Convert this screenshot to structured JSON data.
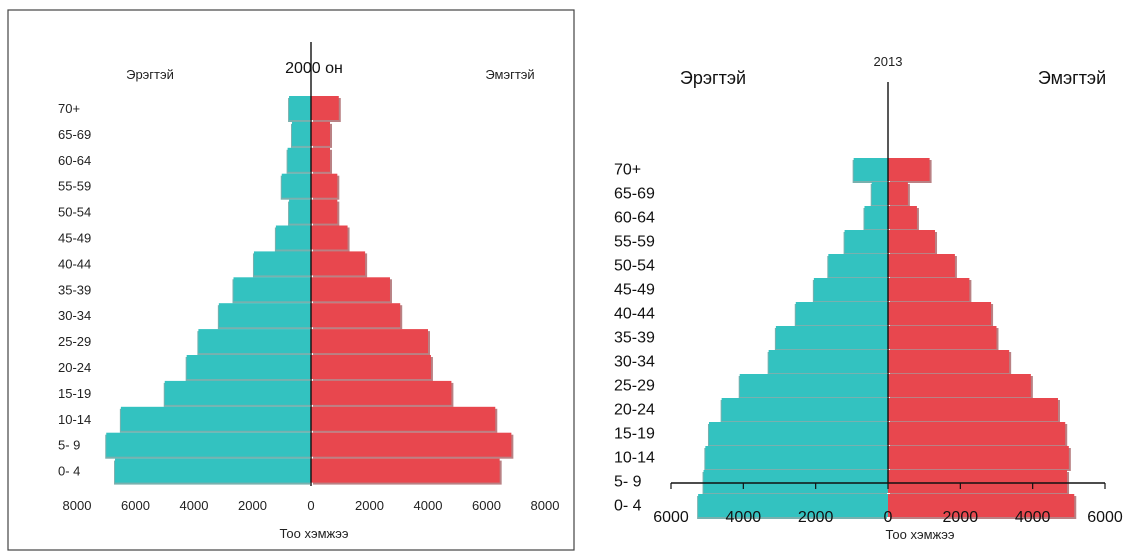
{
  "colors": {
    "male": "#33c2c0",
    "male_shadow": "#0b6f6c",
    "female": "#e8474e",
    "female_shadow": "#7f1a1f",
    "frame": "#444444"
  },
  "chart_data": [
    {
      "type": "bar",
      "title": "2000 он",
      "left_label": "Эрэгтэй",
      "right_label": "Эмэгтэй",
      "xlabel": "Тоо хэмжээ",
      "xlim": [
        -8000,
        8000
      ],
      "xticks": [
        "8000",
        "6000",
        "4000",
        "2000",
        "0",
        "2000",
        "4000",
        "6000",
        "8000"
      ],
      "categories": [
        "70+",
        "65-69",
        "60-64",
        "55-59",
        "50-54",
        "45-49",
        "40-44",
        "35-39",
        "30-34",
        "25-29",
        "20-24",
        "15-19",
        "10-14",
        "5- 9",
        "0- 4"
      ],
      "series": [
        {
          "name": "Эрэгтэй",
          "values": [
            750,
            650,
            800,
            1000,
            750,
            1200,
            1950,
            2650,
            3150,
            3850,
            4250,
            5000,
            6500,
            7000,
            6700
          ]
        },
        {
          "name": "Эмэгтэй",
          "values": [
            950,
            650,
            650,
            900,
            900,
            1250,
            1850,
            2700,
            3050,
            4000,
            4100,
            4800,
            6300,
            6850,
            6450
          ]
        }
      ],
      "grid": false
    },
    {
      "type": "bar",
      "title": "2013",
      "left_label": "Эрэгтэй",
      "right_label": "Эмэгтэй",
      "xlabel": "Тоо хэмжээ",
      "xlim": [
        -6000,
        6000
      ],
      "xticks": [
        "6000",
        "4000",
        "2000",
        "0",
        "2000",
        "4000",
        "6000"
      ],
      "categories": [
        "70+",
        "65-69",
        "60-64",
        "55-59",
        "50-54",
        "45-49",
        "40-44",
        "35-39",
        "30-34",
        "25-29",
        "20-24",
        "15-19",
        "10-14",
        "5- 9",
        "0- 4"
      ],
      "series": [
        {
          "name": "Эрэгтэй",
          "values": [
            950,
            450,
            650,
            1200,
            1650,
            2050,
            2550,
            3100,
            3300,
            4100,
            4600,
            4950,
            5050,
            5100,
            5250
          ]
        },
        {
          "name": "Эмэгтэй",
          "values": [
            1150,
            550,
            800,
            1300,
            1850,
            2250,
            2850,
            3000,
            3350,
            3950,
            4700,
            4900,
            5000,
            4950,
            5150
          ]
        }
      ],
      "grid": false
    }
  ]
}
